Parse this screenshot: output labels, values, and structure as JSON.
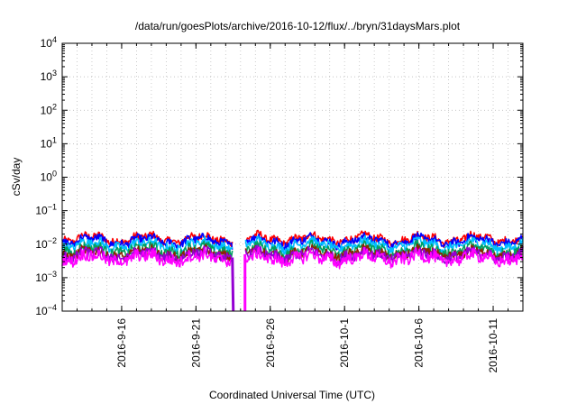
{
  "chart_data": {
    "type": "line",
    "title": "/data/run/goesPlots/archive/2016-10-12/flux/../bryn/31daysMars.plot",
    "xlabel": "Coordinated Universal Time (UTC)",
    "ylabel": "cSv/day",
    "y_scale": "log",
    "ylim": [
      0.0001,
      10000
    ],
    "xlim": [
      "2016-09-12",
      "2016-10-13"
    ],
    "grid": true,
    "x_ticks": [
      "2016-9-16",
      "2016-9-21",
      "2016-9-26",
      "2016-10-1",
      "2016-10-6",
      "2016-10-11"
    ],
    "x_tick_dates": [
      "2016-09-16",
      "2016-09-21",
      "2016-09-26",
      "2016-10-01",
      "2016-10-06",
      "2016-10-11"
    ],
    "y_tick_exponents": [
      -4,
      -3,
      -2,
      -1,
      0,
      1,
      2,
      3,
      4
    ],
    "gap": {
      "start": "2016-09-23",
      "end": "2016-09-24",
      "notes": "data drops below axis minimum"
    },
    "series": [
      {
        "color": "#ff0000",
        "level": 0.0145,
        "spread": 0.22
      },
      {
        "color": "#0000ff",
        "level": 0.0125,
        "spread": 0.23
      },
      {
        "color": "#00bfff",
        "level": 0.0095,
        "spread": 0.25
      },
      {
        "color": "#00a060",
        "level": 0.0068,
        "spread": 0.27
      },
      {
        "color": "#8b2500",
        "level": 0.0052,
        "spread": 0.28
      },
      {
        "color": "#9400d3",
        "level": 0.0047,
        "spread": 0.3
      },
      {
        "color": "#ff00ff",
        "level": 0.0038,
        "spread": 0.35
      }
    ]
  }
}
